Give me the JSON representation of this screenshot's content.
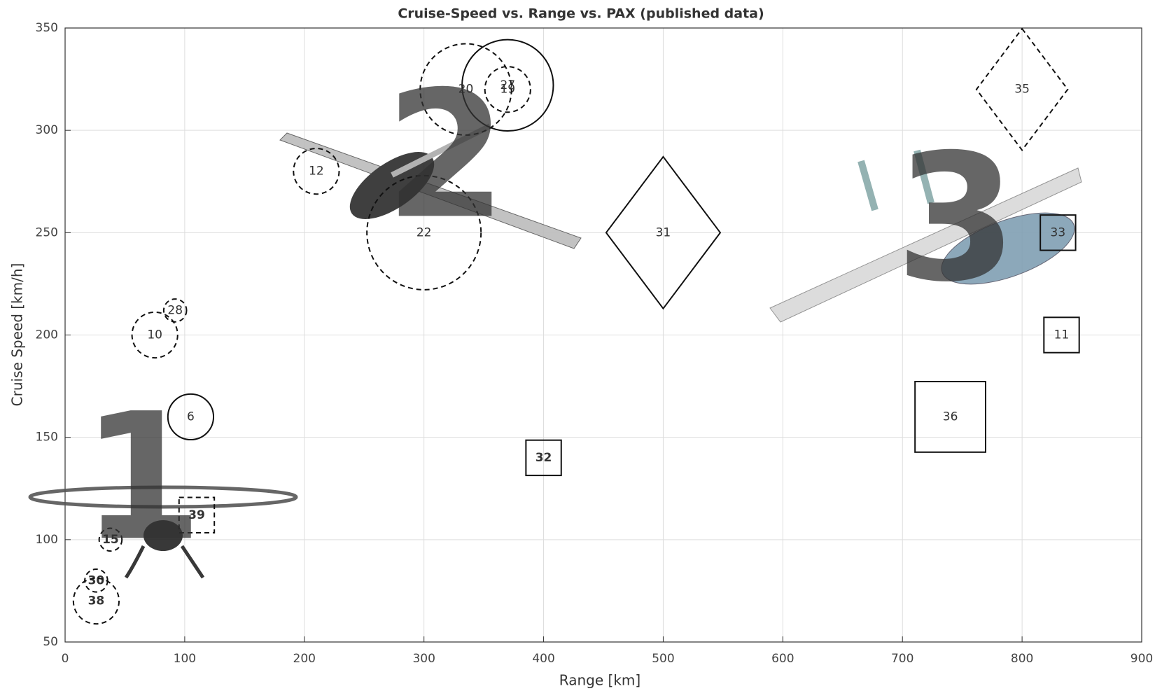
{
  "chart_data": {
    "type": "scatter",
    "title": "Cruise-Speed vs. Range vs. PAX (published data)",
    "xlabel": "Range [km]",
    "ylabel": "Cruise Speed [km/h]",
    "xlim": [
      0,
      900
    ],
    "ylim": [
      50,
      350
    ],
    "xticks": [
      0,
      100,
      200,
      300,
      400,
      500,
      600,
      700,
      800,
      900
    ],
    "yticks": [
      50,
      100,
      150,
      200,
      250,
      300,
      350
    ],
    "grid": true,
    "points": [
      {
        "label": "27",
        "x": 370,
        "y": 322,
        "pax": 4,
        "shape": "circle",
        "dashed": false,
        "bold": false
      },
      {
        "label": "19",
        "x": 370,
        "y": 320,
        "pax": 2,
        "shape": "circle",
        "dashed": true,
        "bold": false
      },
      {
        "label": "20",
        "x": 335,
        "y": 320,
        "pax": 4,
        "shape": "circle",
        "dashed": true,
        "bold": false
      },
      {
        "label": "12",
        "x": 210,
        "y": 280,
        "pax": 2,
        "shape": "circle",
        "dashed": true,
        "bold": false
      },
      {
        "label": "22",
        "x": 300,
        "y": 250,
        "pax": 5,
        "shape": "circle",
        "dashed": true,
        "bold": false
      },
      {
        "label": "10",
        "x": 75,
        "y": 200,
        "pax": 2,
        "shape": "circle",
        "dashed": true,
        "bold": false
      },
      {
        "label": "28",
        "x": 92,
        "y": 212,
        "pax": 1,
        "shape": "circle",
        "dashed": true,
        "bold": false
      },
      {
        "label": "6",
        "x": 105,
        "y": 160,
        "pax": 2,
        "shape": "circle",
        "dashed": false,
        "bold": false
      },
      {
        "label": "15",
        "x": 38,
        "y": 100,
        "pax": 1,
        "shape": "circle",
        "dashed": true,
        "bold": true
      },
      {
        "label": "30",
        "x": 26,
        "y": 80,
        "pax": 1,
        "shape": "circle",
        "dashed": true,
        "bold": true
      },
      {
        "label": "38",
        "x": 26,
        "y": 70,
        "pax": 2,
        "shape": "circle",
        "dashed": true,
        "bold": true
      },
      {
        "label": "39",
        "x": 110,
        "y": 112,
        "pax": 2,
        "shape": "square",
        "dashed": true,
        "bold": true
      },
      {
        "label": "32",
        "x": 400,
        "y": 140,
        "pax": 2,
        "shape": "square",
        "dashed": false,
        "bold": true
      },
      {
        "label": "31",
        "x": 500,
        "y": 250,
        "pax": 5,
        "shape": "diamond",
        "dashed": false,
        "bold": false
      },
      {
        "label": "35",
        "x": 800,
        "y": 320,
        "pax": 4,
        "shape": "diamond",
        "dashed": true,
        "bold": false
      },
      {
        "label": "33",
        "x": 830,
        "y": 250,
        "pax": 2,
        "shape": "square",
        "dashed": false,
        "bold": false
      },
      {
        "label": "11",
        "x": 833,
        "y": 200,
        "pax": 2,
        "shape": "square",
        "dashed": false,
        "bold": false
      },
      {
        "label": "36",
        "x": 740,
        "y": 160,
        "pax": 4,
        "shape": "square",
        "dashed": false,
        "bold": false
      }
    ],
    "annotations": [
      "1",
      "2",
      "3"
    ]
  }
}
